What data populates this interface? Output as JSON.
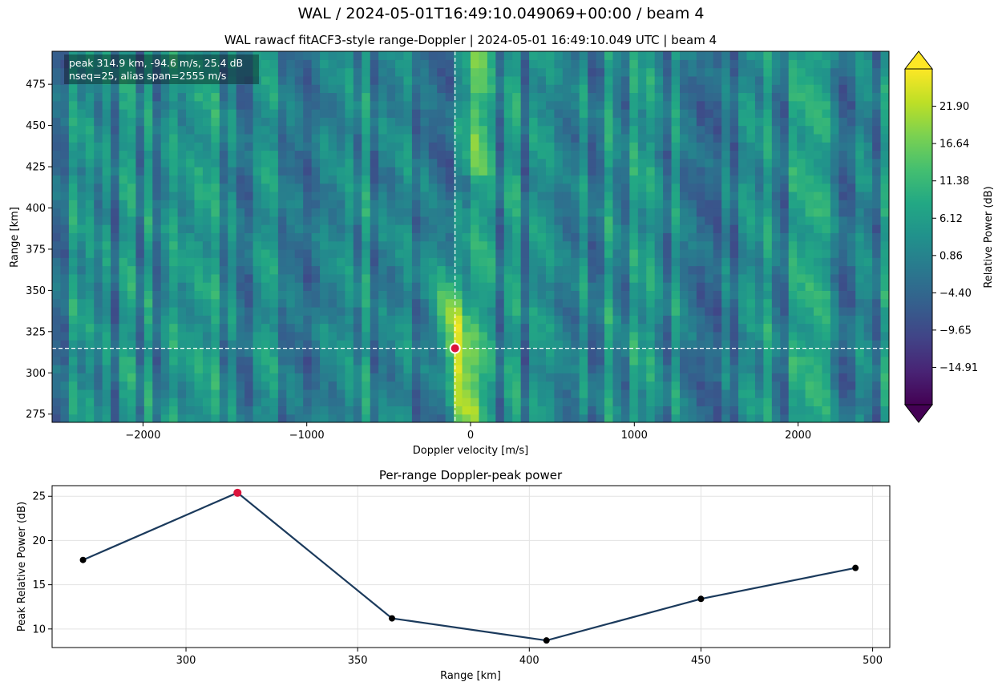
{
  "figure": {
    "suptitle": "WAL / 2024-05-01T16:49:10.049069+00:00 / beam 4"
  },
  "chart_data": [
    {
      "type": "heatmap",
      "title": "WAL rawacf fitACF3-style range-Doppler | 2024-05-01 16:49:10.049 UTC | beam 4",
      "xlabel": "Doppler velocity [m/s]",
      "ylabel": "Range [km]",
      "xlim": [
        -2555,
        2555
      ],
      "ylim": [
        270,
        495
      ],
      "x_ticks": [
        -2000,
        -1000,
        0,
        1000,
        2000
      ],
      "x_tick_labels": [
        "−2000",
        "−1000",
        "0",
        "1000",
        "2000"
      ],
      "y_ticks": [
        275,
        300,
        325,
        350,
        375,
        400,
        425,
        450,
        475
      ],
      "range_gates_km": [
        270,
        315,
        360,
        405,
        450,
        495
      ],
      "colorbar": {
        "label": "Relative Power (dB)",
        "min": -20.17,
        "max": 27.16,
        "ticks": [
          -14.91,
          -9.65,
          -4.4,
          0.86,
          6.12,
          11.38,
          16.64,
          21.9
        ],
        "tick_labels": [
          "−14.91",
          "−9.65",
          "−4.40",
          "0.86",
          "6.12",
          "11.38",
          "16.64",
          "21.90"
        ],
        "extend": "both",
        "colormap": "viridis"
      },
      "annotation": {
        "line1": "peak 314.9 km, -94.6 m/s, 25.4 dB",
        "line2": "nseq=25, alias span=2555 m/s"
      },
      "peak": {
        "range_km": 314.9,
        "velocity_ms": -94.6,
        "power_db": 25.4,
        "marker_color": "#dc143c"
      }
    },
    {
      "type": "line",
      "title": "Per-range Doppler-peak power",
      "xlabel": "Range [km]",
      "ylabel": "Peak Relative Power (dB)",
      "xlim": [
        261,
        505
      ],
      "ylim": [
        7.9,
        26.2
      ],
      "x_ticks": [
        300,
        350,
        400,
        450,
        500
      ],
      "y_ticks": [
        10,
        15,
        20,
        25
      ],
      "grid": true,
      "series": [
        {
          "x": [
            270,
            315,
            360,
            405,
            450,
            495
          ],
          "y": [
            17.8,
            25.4,
            11.2,
            8.7,
            13.4,
            16.9
          ],
          "line_color": "#1b3a5c",
          "marker_color": "#000000"
        }
      ],
      "highlight": {
        "x": 315,
        "y": 25.4,
        "color": "#dc143c"
      }
    }
  ]
}
